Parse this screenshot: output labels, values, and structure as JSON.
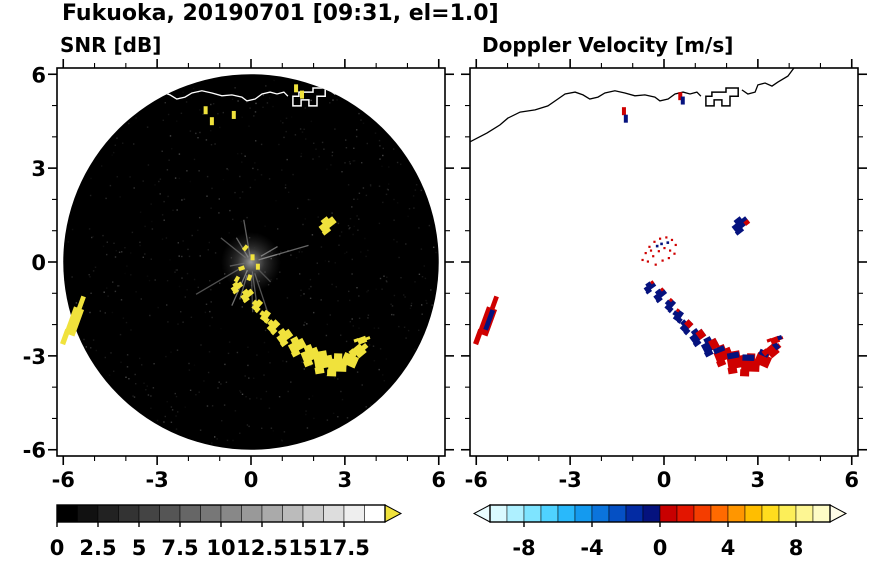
{
  "header": {
    "title": "Fukuoka, 20190701 [09:31, el=1.0]"
  },
  "panels": {
    "snr": {
      "subtitle": "SNR [dB]",
      "x_tick_labels": [
        "-6",
        "-3",
        "0",
        "3",
        "6"
      ],
      "y_tick_labels": [
        "6",
        "3",
        "0",
        "-3",
        "-6"
      ],
      "scan_background": "#000000",
      "echo_color": "#f0e23c"
    },
    "velocity": {
      "subtitle": "Doppler Velocity [m/s]",
      "x_tick_labels": [
        "-6",
        "-3",
        "0",
        "3",
        "6"
      ],
      "negative_color": "#05127e",
      "positive_color": "#cf0000"
    }
  },
  "colorbars": {
    "snr": {
      "tick_labels": [
        "0",
        "2.5",
        "5",
        "7.5",
        "10",
        "12.5",
        "15",
        "17.5"
      ],
      "range": [
        0,
        20
      ],
      "cells": 16,
      "over_arrow_color": "#f0e23c"
    },
    "velocity": {
      "tick_labels": [
        "-8",
        "-4",
        "0",
        "4",
        "8"
      ],
      "range": [
        -10,
        10
      ],
      "cell_colors": [
        "#dafaff",
        "#aef0ff",
        "#7ee4ff",
        "#4fd2ff",
        "#29b9fb",
        "#149aef",
        "#0b74dc",
        "#0550c4",
        "#032ba3",
        "#05127e",
        "#c80000",
        "#e31500",
        "#f43d00",
        "#ff6a00",
        "#ff9600",
        "#ffbe00",
        "#ffdc1e",
        "#fcee58",
        "#fdf693",
        "#fefcc6"
      ],
      "under_arrow_color": "#eafdff",
      "over_arrow_color": "#fffde8"
    }
  },
  "chart_data": {
    "type": "heatmap",
    "title": "Fukuoka, 20190701 [09:31, el=1.0]",
    "subplots": [
      {
        "name": "SNR [dB]",
        "units": "dB",
        "colorbar_range": [
          0,
          20
        ],
        "colorbar_tick_labels": [
          "0",
          "2.5",
          "5",
          "7.5",
          "10",
          "12.5",
          "15",
          "17.5"
        ]
      },
      {
        "name": "Doppler Velocity [m/s]",
        "units": "m/s",
        "colorbar_range": [
          -10,
          10
        ],
        "colorbar_tick_labels": [
          "-8",
          "-4",
          "0",
          "4",
          "8"
        ]
      }
    ],
    "xlim": [
      -6,
      6
    ],
    "ylim": [
      -6,
      6
    ],
    "x_ticks": [
      -6,
      -3,
      0,
      3,
      6
    ],
    "y_ticks": [
      -6,
      -3,
      0,
      3,
      6
    ],
    "scan_disk_radius": 6,
    "coastline": {
      "segments": [
        [
          [
            -6.2,
            3.84
          ],
          [
            -5.66,
            4.12
          ],
          [
            -5.24,
            4.38
          ],
          [
            -4.99,
            4.6
          ],
          [
            -4.6,
            4.79
          ],
          [
            -4.12,
            4.86
          ],
          [
            -3.71,
            4.99
          ],
          [
            -3.39,
            5.21
          ],
          [
            -3.16,
            5.37
          ],
          [
            -2.84,
            5.43
          ],
          [
            -2.59,
            5.34
          ],
          [
            -2.37,
            5.21
          ],
          [
            -2.11,
            5.27
          ],
          [
            -1.89,
            5.4
          ],
          [
            -1.57,
            5.47
          ],
          [
            -1.25,
            5.4
          ],
          [
            -0.93,
            5.31
          ],
          [
            -0.61,
            5.34
          ],
          [
            -0.29,
            5.27
          ],
          [
            -0.13,
            5.15
          ],
          [
            0.13,
            5.21
          ],
          [
            0.35,
            5.37
          ],
          [
            0.61,
            5.43
          ],
          [
            0.83,
            5.37
          ],
          [
            1.05,
            5.43
          ],
          [
            1.18,
            5.3
          ]
        ],
        [
          [
            2.49,
            5.5
          ],
          [
            2.68,
            5.37
          ],
          [
            2.91,
            5.43
          ],
          [
            3.0,
            5.66
          ],
          [
            3.23,
            5.72
          ],
          [
            3.45,
            5.62
          ],
          [
            3.64,
            5.75
          ],
          [
            3.96,
            5.94
          ],
          [
            4.19,
            6.25
          ]
        ]
      ],
      "island": [
        [
          1.34,
          5.3
        ],
        [
          1.34,
          4.99
        ],
        [
          1.6,
          4.99
        ],
        [
          1.6,
          5.18
        ],
        [
          1.85,
          5.18
        ],
        [
          1.85,
          4.99
        ],
        [
          2.11,
          4.99
        ],
        [
          2.11,
          5.3
        ],
        [
          2.37,
          5.3
        ],
        [
          2.37,
          5.56
        ],
        [
          1.98,
          5.56
        ],
        [
          1.98,
          5.43
        ],
        [
          1.53,
          5.43
        ],
        [
          1.53,
          5.3
        ]
      ]
    },
    "echoes": {
      "arc": [
        {
          "x": -0.45,
          "y": -0.8,
          "w": 0.38,
          "h": 0.16,
          "rot": -35,
          "vel": "navy"
        },
        {
          "x": -0.12,
          "y": -1.05,
          "w": 0.42,
          "h": 0.18,
          "rot": -38,
          "vel": "navy"
        },
        {
          "x": 0.2,
          "y": -1.38,
          "w": 0.36,
          "h": 0.18,
          "rot": -48,
          "vel": "navy"
        },
        {
          "x": 0.46,
          "y": -1.72,
          "w": 0.34,
          "h": 0.2,
          "rot": -55,
          "vel": "navy"
        },
        {
          "x": 0.72,
          "y": -2.05,
          "w": 0.4,
          "h": 0.22,
          "rot": -45,
          "vel": "mixed"
        },
        {
          "x": 1.08,
          "y": -2.38,
          "w": 0.48,
          "h": 0.26,
          "rot": -36,
          "vel": "mixed"
        },
        {
          "x": 1.48,
          "y": -2.68,
          "w": 0.52,
          "h": 0.3,
          "rot": -28,
          "vel": "mixed"
        },
        {
          "x": 1.9,
          "y": -2.97,
          "w": 0.55,
          "h": 0.34,
          "rot": -22,
          "vel": "red"
        },
        {
          "x": 2.32,
          "y": -3.2,
          "w": 0.58,
          "h": 0.38,
          "rot": -10,
          "vel": "red"
        },
        {
          "x": 2.76,
          "y": -3.3,
          "w": 0.58,
          "h": 0.4,
          "rot": 2,
          "vel": "red"
        },
        {
          "x": 3.16,
          "y": -3.14,
          "w": 0.48,
          "h": 0.36,
          "rot": 24,
          "vel": "red"
        },
        {
          "x": 3.46,
          "y": -2.84,
          "w": 0.36,
          "h": 0.32,
          "rot": 50,
          "vel": "red"
        },
        {
          "x": 3.55,
          "y": -2.5,
          "w": 0.2,
          "h": 0.28,
          "rot": 70,
          "vel": "red"
        }
      ],
      "west_blob": {
        "x": -5.65,
        "y": -1.9,
        "w": 0.34,
        "h": 0.9,
        "rot": 20
      },
      "ne_blob": {
        "x": 2.45,
        "y": 1.2,
        "w": 0.55,
        "h": 0.24,
        "rot": -38
      },
      "snr_center_specks": [
        [
          -0.18,
          0.45,
          40
        ],
        [
          0.05,
          0.15,
          0
        ],
        [
          -0.3,
          -0.2,
          70
        ],
        [
          -0.05,
          -0.5,
          20
        ],
        [
          0.22,
          -0.15,
          0
        ],
        [
          -0.45,
          -0.55,
          30
        ]
      ],
      "snr_top_specks": [
        [
          -1.45,
          4.85
        ],
        [
          -1.25,
          4.5
        ],
        [
          -0.55,
          4.7
        ],
        [
          1.44,
          5.55
        ],
        [
          1.63,
          5.35
        ]
      ],
      "vel_center_scatter": {
        "red": [
          [
            -0.72,
            0.1
          ],
          [
            -0.62,
            0.32
          ],
          [
            -0.5,
            0.52
          ],
          [
            -0.34,
            0.68
          ],
          [
            -0.16,
            0.78
          ],
          [
            0.04,
            0.82
          ],
          [
            0.22,
            0.74
          ],
          [
            0.34,
            0.58
          ],
          [
            -0.55,
            0.05
          ],
          [
            -0.38,
            0.22
          ],
          [
            -0.2,
            0.38
          ],
          [
            -0.02,
            0.48
          ],
          [
            0.16,
            0.4
          ],
          [
            -0.3,
            -0.05
          ],
          [
            -0.08,
            0.08
          ],
          [
            0.12,
            0.16
          ],
          [
            0.3,
            0.3
          ],
          [
            -0.45,
            0.4
          ]
        ],
        "navy": [
          [
            -0.12,
            0.62
          ],
          [
            0.08,
            0.66
          ],
          [
            -0.26,
            0.55
          ]
        ]
      },
      "vel_top_marks": {
        "red": [
          [
            -1.28,
            4.82
          ],
          [
            0.52,
            5.3
          ]
        ],
        "navy": [
          [
            -1.22,
            4.58
          ],
          [
            0.6,
            5.16
          ]
        ]
      }
    }
  }
}
